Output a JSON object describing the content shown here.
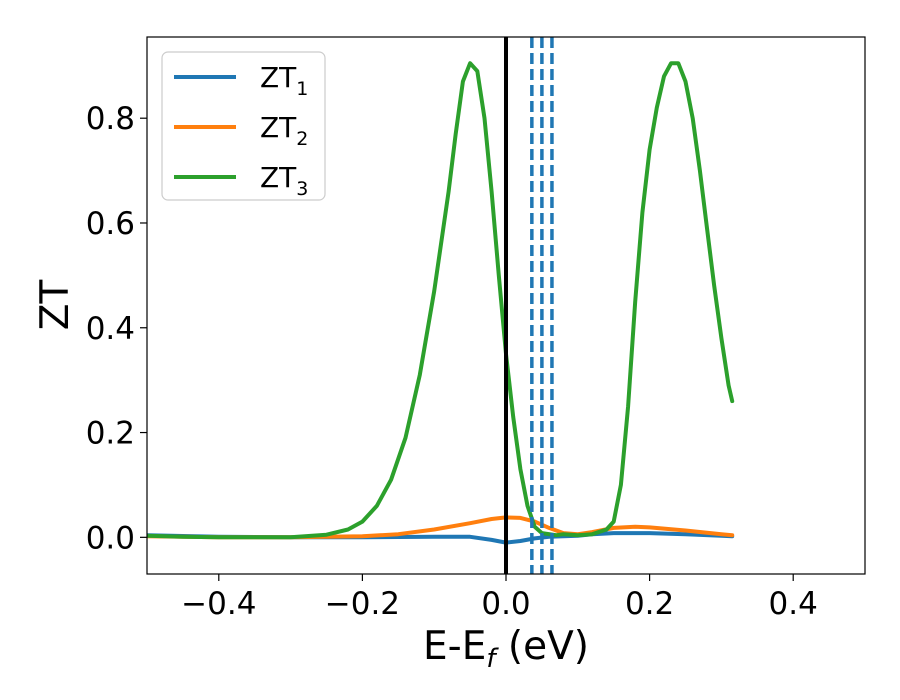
{
  "chart_data": {
    "type": "line",
    "xlabel": "E-E",
    "xlabel_sub": "f",
    "xlabel_unit": " (eV)",
    "ylabel": "ZT",
    "xlim": [
      -0.5,
      0.5
    ],
    "ylim": [
      -0.07,
      0.955
    ],
    "xticks": [
      -0.4,
      -0.2,
      0.0,
      0.2,
      0.4
    ],
    "xtick_labels": [
      "−0.4",
      "−0.2",
      "0.0",
      "0.2",
      "0.4"
    ],
    "yticks": [
      0.0,
      0.2,
      0.4,
      0.6,
      0.8
    ],
    "ytick_labels": [
      "0.0",
      "0.2",
      "0.4",
      "0.6",
      "0.8"
    ],
    "grid": false,
    "legend_position": "top-left",
    "series": [
      {
        "name": "ZT",
        "name_sub": "1",
        "color": "#1f77b4",
        "points": [
          [
            -0.5,
            0.004
          ],
          [
            -0.4,
            0.001
          ],
          [
            -0.3,
            0.0
          ],
          [
            -0.2,
            0.0
          ],
          [
            -0.1,
            0.001
          ],
          [
            -0.05,
            0.001
          ],
          [
            -0.02,
            -0.005
          ],
          [
            0.0,
            -0.01
          ],
          [
            0.02,
            -0.007
          ],
          [
            0.04,
            -0.002
          ],
          [
            0.06,
            0.001
          ],
          [
            0.08,
            0.002
          ],
          [
            0.1,
            0.003
          ],
          [
            0.12,
            0.006
          ],
          [
            0.15,
            0.008
          ],
          [
            0.2,
            0.008
          ],
          [
            0.25,
            0.006
          ],
          [
            0.3,
            0.003
          ],
          [
            0.315,
            0.002
          ]
        ]
      },
      {
        "name": "ZT",
        "name_sub": "2",
        "color": "#ff7f0e",
        "points": [
          [
            -0.5,
            0.002
          ],
          [
            -0.4,
            0.0
          ],
          [
            -0.3,
            0.0
          ],
          [
            -0.2,
            0.002
          ],
          [
            -0.15,
            0.006
          ],
          [
            -0.1,
            0.015
          ],
          [
            -0.05,
            0.027
          ],
          [
            -0.02,
            0.035
          ],
          [
            0.0,
            0.038
          ],
          [
            0.02,
            0.037
          ],
          [
            0.04,
            0.03
          ],
          [
            0.06,
            0.018
          ],
          [
            0.08,
            0.008
          ],
          [
            0.1,
            0.006
          ],
          [
            0.12,
            0.01
          ],
          [
            0.15,
            0.018
          ],
          [
            0.18,
            0.02
          ],
          [
            0.2,
            0.019
          ],
          [
            0.25,
            0.013
          ],
          [
            0.3,
            0.006
          ],
          [
            0.315,
            0.004
          ]
        ]
      },
      {
        "name": "ZT",
        "name_sub": "3",
        "color": "#2ca02c",
        "points": [
          [
            -0.5,
            0.003
          ],
          [
            -0.45,
            0.001
          ],
          [
            -0.4,
            0.0
          ],
          [
            -0.3,
            0.0
          ],
          [
            -0.25,
            0.005
          ],
          [
            -0.22,
            0.015
          ],
          [
            -0.2,
            0.03
          ],
          [
            -0.18,
            0.06
          ],
          [
            -0.16,
            0.11
          ],
          [
            -0.14,
            0.19
          ],
          [
            -0.12,
            0.31
          ],
          [
            -0.1,
            0.47
          ],
          [
            -0.08,
            0.66
          ],
          [
            -0.07,
            0.77
          ],
          [
            -0.06,
            0.87
          ],
          [
            -0.05,
            0.905
          ],
          [
            -0.04,
            0.89
          ],
          [
            -0.03,
            0.8
          ],
          [
            -0.02,
            0.66
          ],
          [
            -0.01,
            0.5
          ],
          [
            0.0,
            0.35
          ],
          [
            0.01,
            0.23
          ],
          [
            0.02,
            0.13
          ],
          [
            0.03,
            0.06
          ],
          [
            0.04,
            0.02
          ],
          [
            0.05,
            0.008
          ],
          [
            0.07,
            0.004
          ],
          [
            0.08,
            0.006
          ],
          [
            0.1,
            0.004
          ],
          [
            0.12,
            0.006
          ],
          [
            0.14,
            0.015
          ],
          [
            0.15,
            0.03
          ],
          [
            0.16,
            0.1
          ],
          [
            0.17,
            0.25
          ],
          [
            0.18,
            0.45
          ],
          [
            0.19,
            0.62
          ],
          [
            0.2,
            0.74
          ],
          [
            0.21,
            0.82
          ],
          [
            0.22,
            0.88
          ],
          [
            0.23,
            0.905
          ],
          [
            0.24,
            0.905
          ],
          [
            0.25,
            0.87
          ],
          [
            0.26,
            0.8
          ],
          [
            0.27,
            0.7
          ],
          [
            0.28,
            0.59
          ],
          [
            0.29,
            0.48
          ],
          [
            0.3,
            0.38
          ],
          [
            0.31,
            0.29
          ],
          [
            0.315,
            0.26
          ]
        ]
      }
    ],
    "vlines": [
      {
        "x": 0.0,
        "style": "solid",
        "color": "#000000"
      },
      {
        "x": 0.036,
        "style": "dashed",
        "color": "#1f77b4"
      },
      {
        "x": 0.05,
        "style": "dashed",
        "color": "#1f77b4"
      },
      {
        "x": 0.064,
        "style": "dashed",
        "color": "#1f77b4"
      }
    ]
  }
}
